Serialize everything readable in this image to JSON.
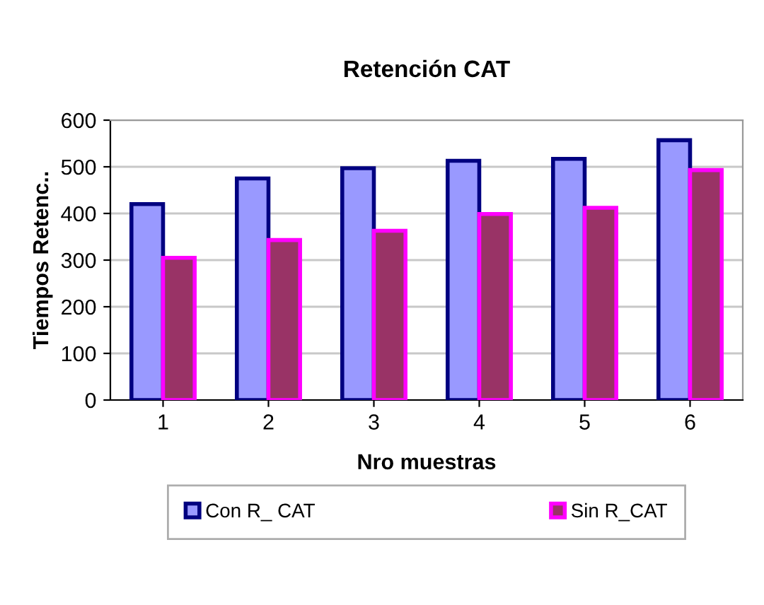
{
  "chart_data": {
    "type": "bar",
    "title": "Retención CAT",
    "xlabel": "Nro muestras",
    "ylabel": "Tiempos Retenc..",
    "categories": [
      "1",
      "2",
      "3",
      "4",
      "5",
      "6"
    ],
    "series": [
      {
        "name": "Con R_ CAT",
        "color": "#9999ff",
        "values": [
          420,
          475,
          497,
          513,
          517,
          557
        ]
      },
      {
        "name": "Sin R_CAT",
        "color": "#993366",
        "values": [
          305,
          343,
          363,
          399,
          412,
          493
        ]
      }
    ],
    "ylim": [
      0,
      600
    ],
    "yticks": [
      0,
      100,
      200,
      300,
      400,
      500,
      600
    ],
    "grid": "y",
    "legend": "bottom"
  }
}
